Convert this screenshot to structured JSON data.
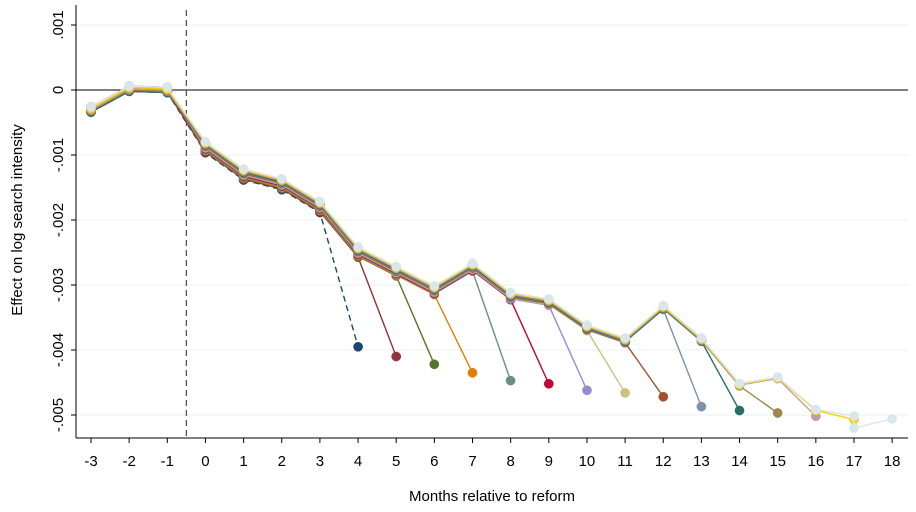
{
  "chart_data": {
    "type": "line",
    "title": "",
    "xlabel": "Months relative to reform",
    "ylabel": "Effect on log search intensity",
    "x_ticks": [
      -3,
      -2,
      -1,
      0,
      1,
      2,
      3,
      4,
      5,
      6,
      7,
      8,
      9,
      10,
      11,
      12,
      13,
      14,
      15,
      16,
      17,
      18
    ],
    "y_ticks": [
      0.001,
      0,
      -0.001,
      -0.002,
      -0.003,
      -0.004,
      -0.005
    ],
    "y_tick_labels": [
      ".001",
      "0",
      "-.001",
      "-.002",
      "-.003",
      "-.004",
      "-.005"
    ],
    "xlim": [
      -3.4,
      18.4
    ],
    "ylim": [
      -0.0053,
      0.0012
    ],
    "reference_lines": {
      "horizontal_y": 0,
      "vertical_x": -0.5,
      "vertical_style": "dashed"
    },
    "grid": "horizontal",
    "legend": "none",
    "base_path": [
      -0.0003,
      2e-05,
      0,
      -0.00088,
      -0.0013,
      -0.00145,
      -0.0018,
      -0.0025,
      -0.0028,
      -0.0031,
      -0.00275,
      -0.0032,
      -0.0033,
      -0.0037,
      -0.0039,
      -0.0034,
      -0.0039,
      -0.0046,
      -0.0045,
      -0.005,
      -0.0051
    ],
    "series": [
      {
        "end_month": 4,
        "end_value": -0.00395,
        "color": "#1a476f",
        "dashed": true
      },
      {
        "end_month": 5,
        "end_value": -0.0041,
        "color": "#90353b"
      },
      {
        "end_month": 6,
        "end_value": -0.00422,
        "color": "#55752f"
      },
      {
        "end_month": 7,
        "end_value": -0.00435,
        "color": "#e37e00"
      },
      {
        "end_month": 8,
        "end_value": -0.00447,
        "color": "#6e8e84"
      },
      {
        "end_month": 9,
        "end_value": -0.00452,
        "color": "#c10534"
      },
      {
        "end_month": 10,
        "end_value": -0.00462,
        "color": "#938dd2"
      },
      {
        "end_month": 11,
        "end_value": -0.00466,
        "color": "#cac27e"
      },
      {
        "end_month": 12,
        "end_value": -0.00472,
        "color": "#a0522d"
      },
      {
        "end_month": 13,
        "end_value": -0.00487,
        "color": "#7b92a8"
      },
      {
        "end_month": 14,
        "end_value": -0.00493,
        "color": "#2d6d66"
      },
      {
        "end_month": 15,
        "end_value": -0.00497,
        "color": "#9c8847"
      },
      {
        "end_month": 16,
        "end_value": -0.00502,
        "color": "#bfa19c"
      },
      {
        "end_month": 17,
        "end_value": -0.00507,
        "color": "#ffd200"
      },
      {
        "end_month": 18,
        "end_value": -0.00506,
        "color": "#d9e6eb",
        "final_path": [
          -0.0052,
          -0.00506
        ]
      }
    ]
  }
}
